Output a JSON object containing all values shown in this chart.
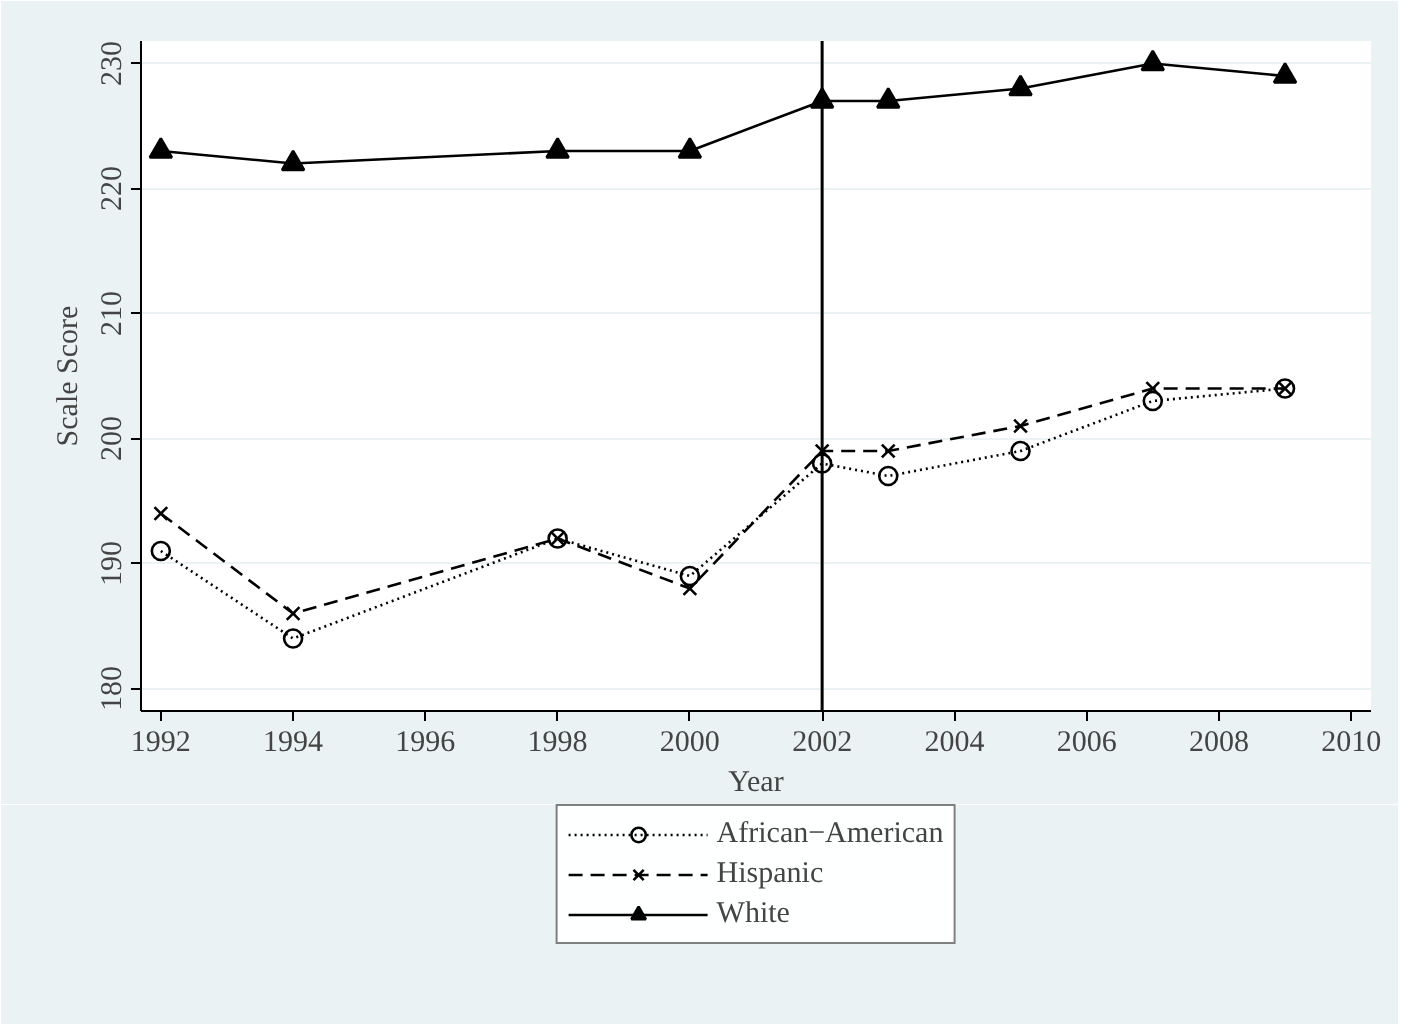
{
  "chart_data": {
    "type": "line",
    "xlabel": "Year",
    "ylabel": "Scale Score",
    "x": [
      1992,
      1994,
      1998,
      2000,
      2002,
      2003,
      2005,
      2007,
      2009
    ],
    "series": [
      {
        "name": "African−American",
        "color": "#000000",
        "marker": "circle",
        "line_style": "dotted",
        "values": [
          191,
          184,
          192,
          189,
          198,
          197,
          199,
          203,
          204
        ]
      },
      {
        "name": "Hispanic",
        "color": "#000000",
        "marker": "cross",
        "line_style": "dashed",
        "values": [
          194,
          186,
          192,
          188,
          199,
          199,
          201,
          204,
          204
        ]
      },
      {
        "name": "White",
        "color": "#000000",
        "marker": "triangle",
        "line_style": "solid",
        "values": [
          223,
          222,
          223,
          223,
          227,
          227,
          228,
          230,
          229
        ]
      }
    ],
    "xlim": [
      1991.7,
      2010.3
    ],
    "ylim": [
      178.2,
      231.8
    ],
    "xticks": [
      1992,
      1994,
      1996,
      1998,
      2000,
      2002,
      2004,
      2006,
      2008,
      2010
    ],
    "yticks": [
      180,
      190,
      200,
      210,
      220,
      230
    ],
    "ref_lines": [
      {
        "axis": "x",
        "value": 2002,
        "label": null,
        "color": "#000000"
      }
    ],
    "grid": "y",
    "legend": "bottom"
  }
}
